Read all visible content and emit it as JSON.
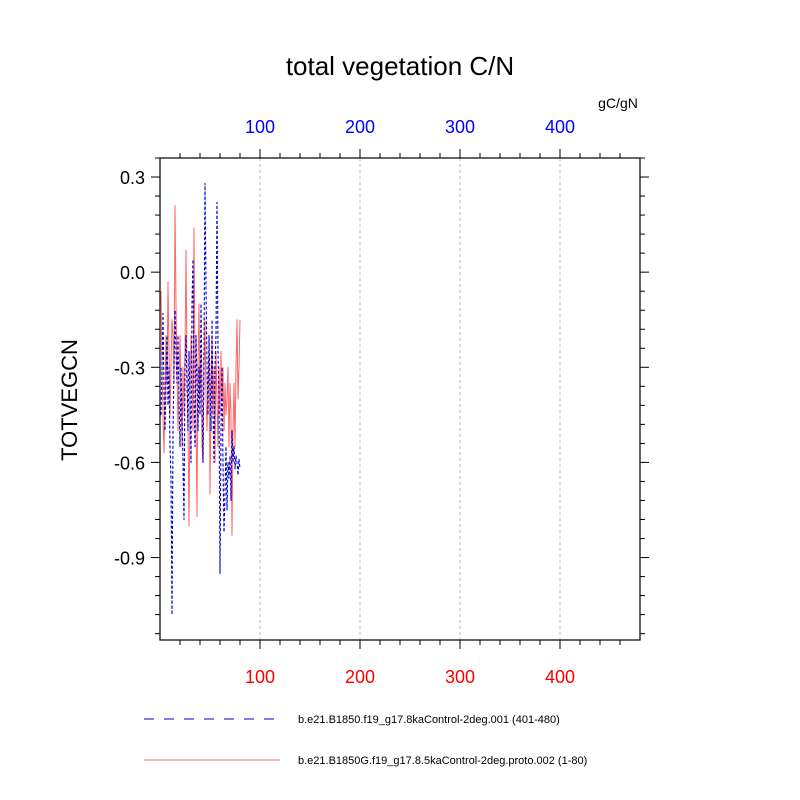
{
  "chart_data": {
    "type": "line",
    "title": "total vegetation C/N",
    "units": "gC/gN",
    "ylabel": "TOTVEGCN",
    "xlabel": "",
    "xlim": [
      0,
      480
    ],
    "ylim": [
      -1.16,
      0.36
    ],
    "y_ticks": [
      0.3,
      0.0,
      -0.3,
      -0.6,
      -0.9
    ],
    "y_tick_labels": [
      "0.3",
      "0.0",
      "-0.3",
      "-0.6",
      "-0.9"
    ],
    "x_ticks": [
      100,
      200,
      300,
      400
    ],
    "x_tick_labels_top": [
      "100",
      "200",
      "300",
      "400"
    ],
    "x_tick_labels_bottom": [
      "100",
      "200",
      "300",
      "400"
    ],
    "grid": "vertical dashed at x ticks",
    "colors": {
      "top_axis_labels": "#0000ff",
      "bottom_axis_labels": "#ff0000",
      "series_blue": "#0000cc",
      "series_red": "#ff6666"
    },
    "series": [
      {
        "name": "b.e21.B1850.f19_g17.8kaControl-2deg.001 (401-480)",
        "style": "dashed",
        "x": [
          1,
          2,
          3,
          4,
          5,
          6,
          7,
          8,
          9,
          10,
          11,
          12,
          13,
          14,
          15,
          16,
          17,
          18,
          19,
          20,
          21,
          22,
          23,
          24,
          25,
          26,
          27,
          28,
          29,
          30,
          31,
          32,
          33,
          34,
          35,
          36,
          37,
          38,
          39,
          40,
          41,
          42,
          43,
          44,
          45,
          46,
          47,
          48,
          49,
          50,
          51,
          52,
          53,
          54,
          55,
          56,
          57,
          58,
          59,
          60,
          61,
          62,
          63,
          64,
          65,
          66,
          67,
          68,
          69,
          70,
          71,
          72,
          73,
          74,
          75,
          76,
          77,
          78,
          79,
          80
        ],
        "y": [
          -0.45,
          -0.3,
          -0.13,
          -0.38,
          -0.5,
          -0.35,
          -0.2,
          -0.42,
          -0.3,
          -0.55,
          -0.65,
          -1.08,
          -0.5,
          -0.3,
          -0.12,
          -0.25,
          -0.35,
          -0.2,
          -0.4,
          -0.55,
          -0.3,
          -0.45,
          -0.6,
          -0.78,
          -0.3,
          -0.2,
          -0.35,
          -0.5,
          -0.25,
          -0.4,
          -0.6,
          -0.1,
          0.04,
          -0.4,
          -0.55,
          -0.2,
          -0.35,
          -0.5,
          -0.3,
          -0.45,
          -0.1,
          -0.38,
          -0.6,
          -0.25,
          0.28,
          -0.05,
          -0.3,
          -0.45,
          -0.2,
          -0.35,
          -0.5,
          -0.15,
          -0.45,
          -0.6,
          -0.3,
          -0.2,
          0.22,
          -0.25,
          -0.4,
          -0.95,
          -0.5,
          -0.3,
          -0.6,
          -0.82,
          -0.7,
          -0.55,
          -0.75,
          -0.6,
          -0.65,
          -0.58,
          -0.72,
          -0.5,
          -0.6,
          -0.55,
          -0.62,
          -0.58,
          -0.6,
          -0.64,
          -0.59,
          -0.62
        ]
      },
      {
        "name": "b.e21.B1850G.f19_g17.8.5kaControl-2deg.proto.002 (1-80)",
        "style": "solid",
        "x": [
          1,
          2,
          3,
          4,
          5,
          6,
          7,
          8,
          9,
          10,
          11,
          12,
          13,
          14,
          15,
          16,
          17,
          18,
          19,
          20,
          21,
          22,
          23,
          24,
          25,
          26,
          27,
          28,
          29,
          30,
          31,
          32,
          33,
          34,
          35,
          36,
          37,
          38,
          39,
          40,
          41,
          42,
          43,
          44,
          45,
          46,
          47,
          48,
          49,
          50,
          51,
          52,
          53,
          54,
          55,
          56,
          57,
          58,
          59,
          60,
          61,
          62,
          63,
          64,
          65,
          66,
          67,
          68,
          69,
          70,
          71,
          72,
          73,
          74,
          75,
          76,
          77,
          78,
          79,
          80
        ],
        "y": [
          -0.06,
          -0.3,
          -0.45,
          -0.57,
          -0.4,
          -0.2,
          -0.35,
          -0.03,
          -0.25,
          -0.45,
          -0.3,
          -0.15,
          -0.2,
          -0.35,
          0.21,
          -0.1,
          -0.3,
          -0.5,
          -0.35,
          -0.2,
          -0.4,
          -0.55,
          -0.3,
          -0.45,
          -0.25,
          0.07,
          -0.3,
          -0.5,
          -0.8,
          -0.4,
          -0.2,
          -0.3,
          -0.5,
          0.14,
          -0.3,
          -0.45,
          -0.77,
          -0.3,
          -0.1,
          -0.4,
          -0.25,
          -0.55,
          -0.6,
          -0.3,
          -0.15,
          -0.4,
          -0.5,
          -0.35,
          -0.25,
          -0.7,
          -0.4,
          -0.2,
          -0.45,
          -0.3,
          -0.6,
          -0.25,
          -0.4,
          -0.55,
          -0.3,
          -0.45,
          -0.25,
          -0.4,
          -0.3,
          -0.5,
          -0.35,
          -0.45,
          -0.4,
          -0.3,
          -0.55,
          -0.35,
          -0.45,
          -0.83,
          -0.5,
          -0.35,
          -0.55,
          -0.3,
          -0.15,
          -0.4,
          -0.3,
          -0.15
        ]
      }
    ]
  }
}
